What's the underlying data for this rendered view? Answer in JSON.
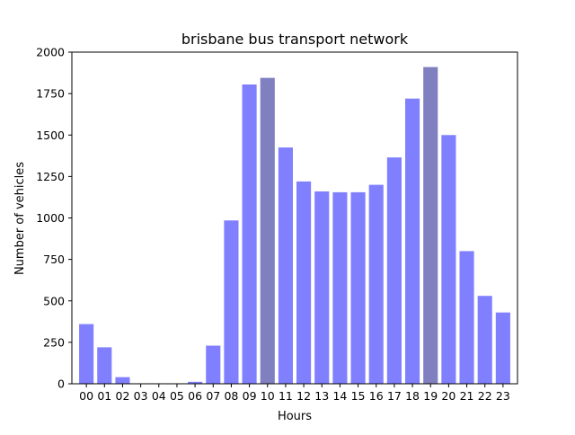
{
  "chart_data": {
    "type": "bar",
    "title": "brisbane bus transport network",
    "xlabel": "Hours",
    "ylabel": "Number of vehicles",
    "categories": [
      "00",
      "01",
      "02",
      "03",
      "04",
      "05",
      "06",
      "07",
      "08",
      "09",
      "10",
      "11",
      "12",
      "13",
      "14",
      "15",
      "16",
      "17",
      "18",
      "19",
      "20",
      "21",
      "22",
      "23"
    ],
    "values": [
      360,
      220,
      40,
      0,
      0,
      0,
      12,
      230,
      985,
      1805,
      1845,
      1425,
      1220,
      1160,
      1155,
      1155,
      1200,
      1365,
      1720,
      1910,
      1500,
      800,
      530,
      430
    ],
    "highlighted": [
      "10",
      "19"
    ],
    "ylim": [
      0,
      2000
    ],
    "yticks": [
      0,
      250,
      500,
      750,
      1000,
      1250,
      1500,
      1750,
      2000
    ],
    "grid": false,
    "colors": {
      "bar": "#8080ff",
      "bar_highlight": "#8080c0",
      "axis": "#000000"
    }
  }
}
